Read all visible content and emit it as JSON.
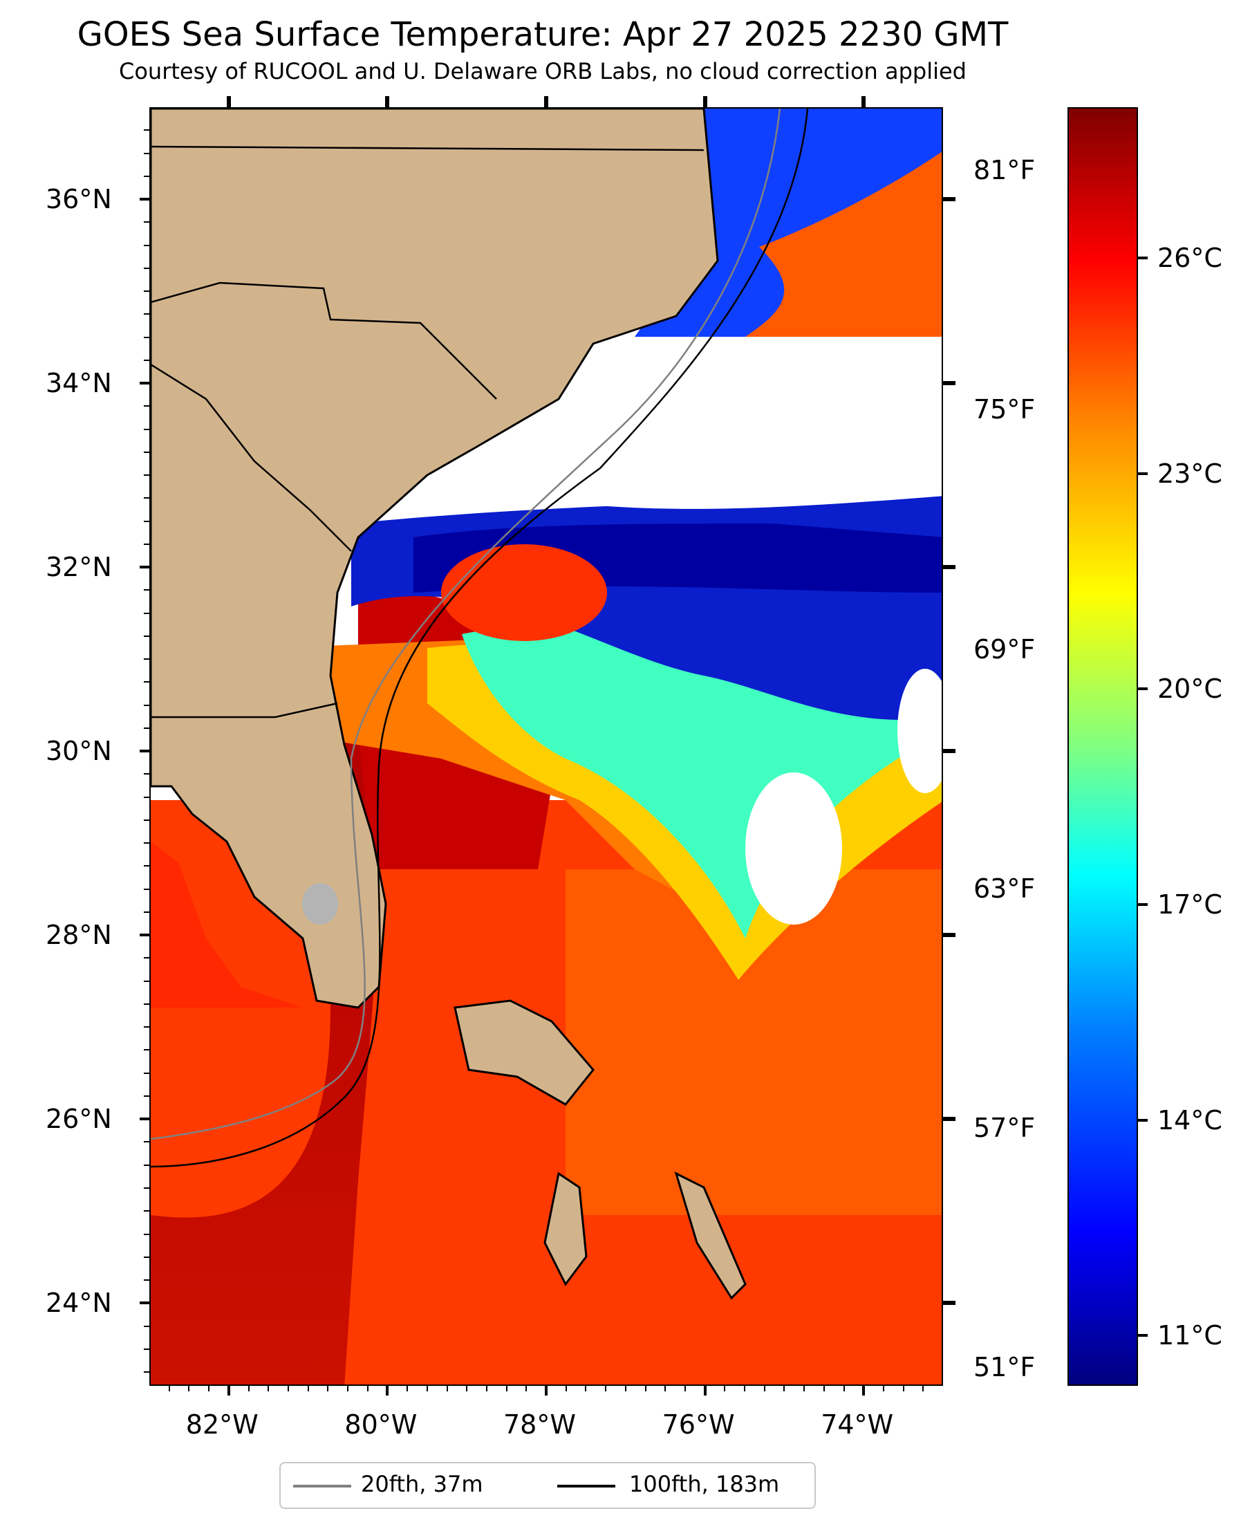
{
  "title": "GOES Sea Surface Temperature: Apr 27 2025 2230 GMT",
  "subtitle": "Courtesy of RUCOOL and U. Delaware ORB Labs, no cloud correction applied",
  "map": {
    "extent": {
      "lon": [
        -83,
        -73
      ],
      "lat": [
        23.1,
        37.0
      ]
    },
    "lat_labels": [
      "36°N",
      "34°N",
      "32°N",
      "30°N",
      "28°N",
      "26°N",
      "24°N"
    ],
    "lat_values": [
      36,
      34,
      32,
      30,
      28,
      26,
      24
    ],
    "lon_labels": [
      "82°W",
      "80°W",
      "78°W",
      "76°W",
      "74°W"
    ],
    "lon_values": [
      -82,
      -80,
      -78,
      -76,
      -74
    ],
    "fahrenheit_labels": [
      "81°F",
      "75°F",
      "69°F",
      "63°F",
      "57°F",
      "51°F"
    ],
    "land_color": "#d2b48c",
    "cloud_color": "#ffffff"
  },
  "colorbar": {
    "colormap": "jet",
    "range_c": [
      10.3,
      28.1
    ],
    "labels": [
      "26°C",
      "23°C",
      "20°C",
      "17°C",
      "14°C",
      "11°C"
    ],
    "values": [
      26,
      23,
      20,
      17,
      14,
      11
    ]
  },
  "legend": {
    "items": [
      {
        "label": "20fth, 37m",
        "color": "#808080"
      },
      {
        "label": "100fth, 183m",
        "color": "#000000"
      }
    ]
  }
}
